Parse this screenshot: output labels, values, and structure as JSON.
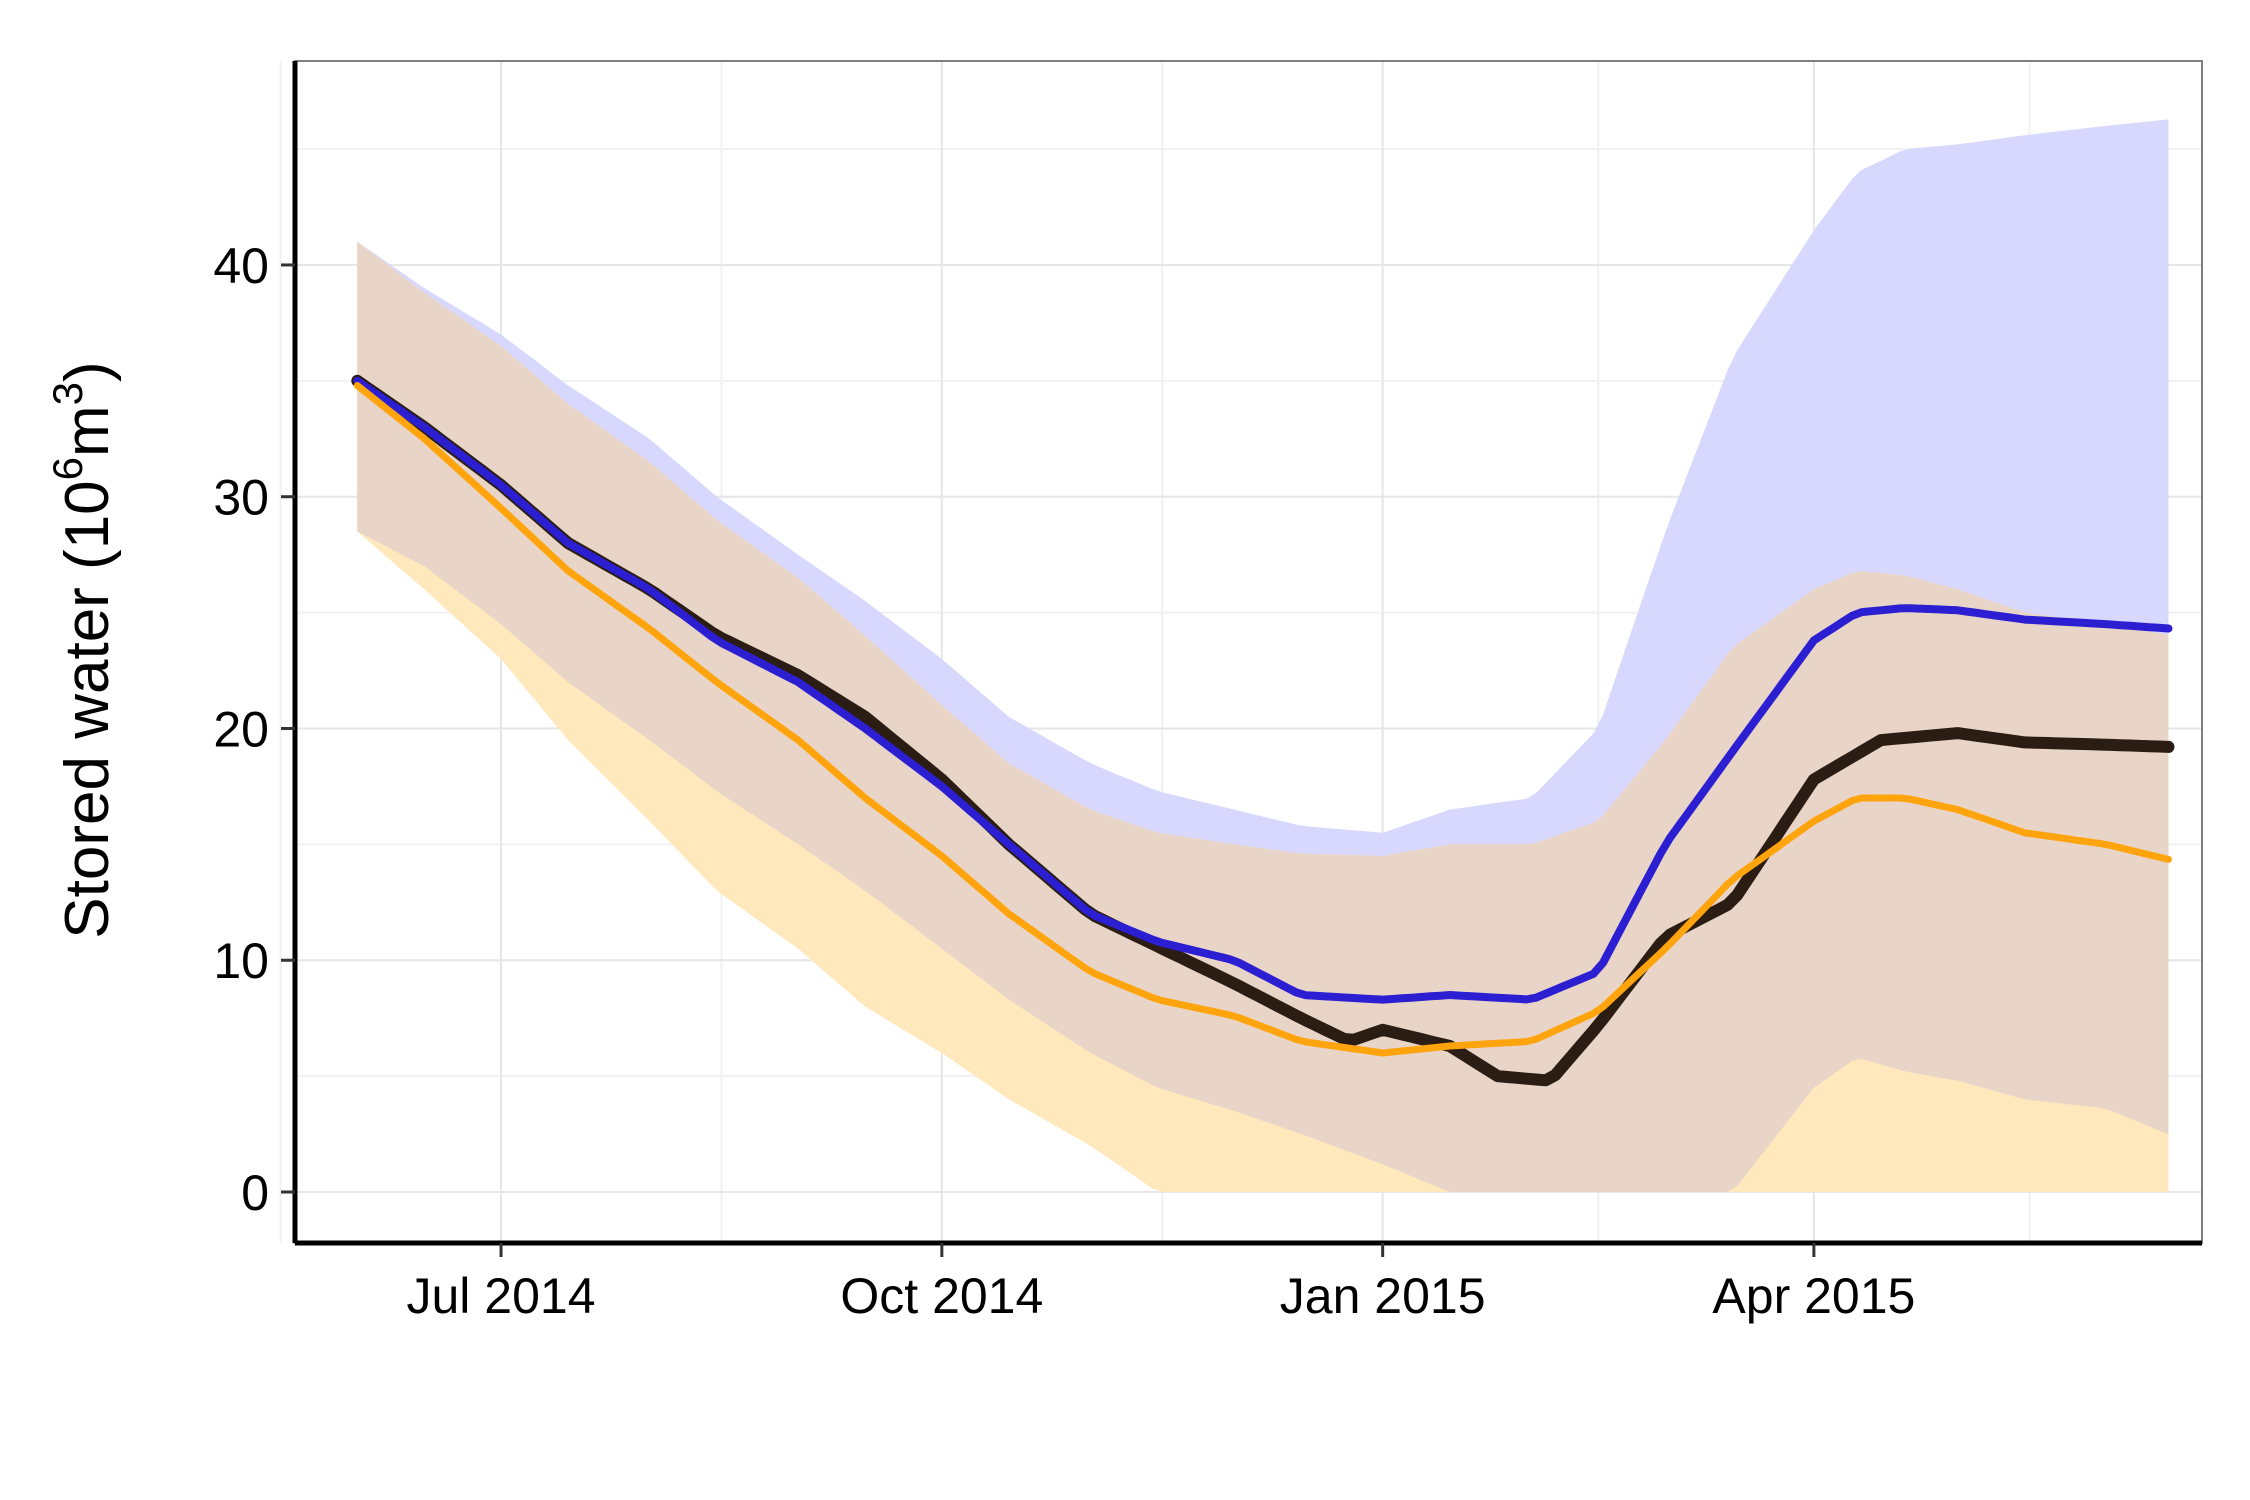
{
  "chart_data": {
    "type": "line",
    "title": "",
    "xlabel": "",
    "ylabel": {
      "main": "Stored water (10",
      "sup1": "6",
      "mid": "m",
      "sup2": "3",
      "end": ")"
    },
    "x_range": [
      "2014-05-19",
      "2015-06-21"
    ],
    "ylim": [
      -2.2,
      48.8
    ],
    "x_ticks": [
      {
        "date": "2014-07-01",
        "label": "Jul 2014"
      },
      {
        "date": "2014-10-01",
        "label": "Oct 2014"
      },
      {
        "date": "2015-01-01",
        "label": "Jan 2015"
      },
      {
        "date": "2015-04-01",
        "label": "Apr 2015"
      }
    ],
    "x_minor_ticks": [
      "2014-05-16",
      "2014-08-16",
      "2014-11-16",
      "2015-02-15",
      "2015-05-16"
    ],
    "y_ticks": [
      0,
      10,
      20,
      30,
      40
    ],
    "y_minor_ticks": [
      5,
      15,
      25,
      35,
      45
    ],
    "grid": true,
    "colors": {
      "black": "#2b1d13",
      "blue": "#2c1fd2",
      "orange": "#ffa40c",
      "band_blue": "#d8d8ff",
      "band_orange": "#ffe8bc",
      "band_overlap": "#e8d5c8"
    },
    "series": [
      {
        "key": "black",
        "color": "#2b1d13",
        "x": [
          "2014-06-01",
          "2014-06-15",
          "2014-07-01",
          "2014-07-15",
          "2014-08-01",
          "2014-08-15",
          "2014-09-01",
          "2014-09-15",
          "2014-10-01",
          "2014-10-15",
          "2014-11-01",
          "2014-11-15",
          "2014-12-01",
          "2014-12-15",
          "2014-12-25",
          "2015-01-01",
          "2015-01-15",
          "2015-01-25",
          "2015-02-05",
          "2015-02-15",
          "2015-03-01",
          "2015-03-15",
          "2015-04-01",
          "2015-04-15",
          "2015-05-01",
          "2015-05-15",
          "2015-06-01",
          "2015-06-15"
        ],
        "y": [
          35.0,
          33.0,
          30.5,
          28.0,
          26.0,
          24.0,
          22.3,
          20.5,
          17.8,
          15.0,
          12.0,
          10.6,
          9.0,
          7.5,
          6.5,
          7.0,
          6.3,
          5.0,
          4.8,
          7.2,
          11.0,
          12.5,
          17.8,
          19.5,
          19.8,
          19.4,
          19.3,
          19.2
        ]
      },
      {
        "key": "blue",
        "color": "#2c1fd2",
        "x": [
          "2014-06-01",
          "2014-06-15",
          "2014-07-01",
          "2014-07-15",
          "2014-08-01",
          "2014-08-15",
          "2014-09-01",
          "2014-09-15",
          "2014-10-01",
          "2014-10-15",
          "2014-11-01",
          "2014-11-15",
          "2014-12-01",
          "2014-12-15",
          "2015-01-01",
          "2015-01-15",
          "2015-02-01",
          "2015-02-15",
          "2015-03-01",
          "2015-03-15",
          "2015-04-01",
          "2015-04-10",
          "2015-04-20",
          "2015-05-01",
          "2015-05-15",
          "2015-06-01",
          "2015-06-15"
        ],
        "y": [
          35.0,
          33.0,
          30.5,
          28.0,
          26.0,
          23.8,
          22.0,
          20.0,
          17.5,
          15.0,
          12.0,
          10.8,
          10.0,
          8.5,
          8.3,
          8.5,
          8.3,
          9.5,
          15.0,
          19.0,
          23.8,
          25.0,
          25.2,
          25.1,
          24.7,
          24.5,
          24.3
        ]
      },
      {
        "key": "orange",
        "color": "#ffa40c",
        "x": [
          "2014-06-01",
          "2014-06-15",
          "2014-07-01",
          "2014-07-15",
          "2014-08-01",
          "2014-08-15",
          "2014-09-01",
          "2014-09-15",
          "2014-10-01",
          "2014-10-15",
          "2014-11-01",
          "2014-11-15",
          "2014-12-01",
          "2014-12-15",
          "2015-01-01",
          "2015-01-15",
          "2015-02-01",
          "2015-02-15",
          "2015-03-01",
          "2015-03-15",
          "2015-04-01",
          "2015-04-10",
          "2015-04-20",
          "2015-05-01",
          "2015-05-15",
          "2015-06-01",
          "2015-06-15"
        ],
        "y": [
          34.8,
          32.5,
          29.5,
          26.8,
          24.3,
          22.0,
          19.5,
          17.0,
          14.5,
          12.0,
          9.5,
          8.3,
          7.6,
          6.5,
          6.0,
          6.3,
          6.5,
          7.8,
          10.5,
          13.5,
          16.0,
          17.0,
          17.0,
          16.5,
          15.5,
          15.0,
          14.3
        ]
      }
    ],
    "bands": [
      {
        "key": "blue",
        "color": "#d8d8ff",
        "x": [
          "2014-06-01",
          "2014-06-15",
          "2014-07-01",
          "2014-07-15",
          "2014-08-01",
          "2014-08-15",
          "2014-09-01",
          "2014-09-15",
          "2014-10-01",
          "2014-10-15",
          "2014-11-01",
          "2014-11-15",
          "2014-12-01",
          "2014-12-15",
          "2015-01-01",
          "2015-01-15",
          "2015-02-01",
          "2015-02-15",
          "2015-03-01",
          "2015-03-15",
          "2015-04-01",
          "2015-04-10",
          "2015-04-20",
          "2015-05-01",
          "2015-05-15",
          "2015-06-01",
          "2015-06-15"
        ],
        "upper": [
          41.0,
          39.0,
          37.0,
          34.8,
          32.5,
          30.0,
          27.5,
          25.5,
          23.0,
          20.5,
          18.5,
          17.3,
          16.5,
          15.8,
          15.5,
          16.5,
          17.0,
          20.0,
          28.5,
          36.0,
          41.5,
          44.0,
          45.0,
          45.2,
          45.6,
          46.0,
          46.3
        ],
        "lower": [
          28.5,
          27.0,
          24.5,
          22.0,
          19.5,
          17.3,
          15.0,
          13.0,
          10.5,
          8.3,
          6.0,
          4.5,
          3.5,
          2.5,
          1.2,
          0.0,
          0.0,
          0.0,
          0.0,
          0.0,
          4.5,
          5.8,
          5.2,
          4.8,
          4.0,
          3.6,
          2.4
        ]
      },
      {
        "key": "orange",
        "color": "#ffe8bc",
        "x": [
          "2014-06-01",
          "2014-06-15",
          "2014-07-01",
          "2014-07-15",
          "2014-08-01",
          "2014-08-15",
          "2014-09-01",
          "2014-09-15",
          "2014-10-01",
          "2014-10-15",
          "2014-11-01",
          "2014-11-15",
          "2014-12-01",
          "2014-12-15",
          "2015-01-01",
          "2015-01-15",
          "2015-02-01",
          "2015-02-15",
          "2015-03-01",
          "2015-03-15",
          "2015-04-01",
          "2015-04-10",
          "2015-04-20",
          "2015-05-01",
          "2015-05-15",
          "2015-06-01",
          "2015-06-15"
        ],
        "upper": [
          41.0,
          38.8,
          36.5,
          34.0,
          31.5,
          29.0,
          26.5,
          24.0,
          21.0,
          18.5,
          16.5,
          15.5,
          15.0,
          14.6,
          14.5,
          15.0,
          15.0,
          16.0,
          19.5,
          23.5,
          26.0,
          26.8,
          26.6,
          26.0,
          25.0,
          24.5,
          24.0
        ],
        "lower": [
          28.5,
          26.0,
          23.0,
          19.5,
          16.0,
          13.0,
          10.5,
          8.0,
          6.0,
          4.0,
          2.0,
          0.0,
          0.0,
          0.0,
          0.0,
          0.0,
          0.0,
          0.0,
          0.0,
          0.0,
          0.0,
          0.0,
          0.0,
          0.0,
          0.0,
          0.0,
          0.0
        ]
      },
      {
        "key": "overlap",
        "color": "#e8d5c8",
        "x": [
          "2014-06-01",
          "2014-06-15",
          "2014-07-01",
          "2014-07-15",
          "2014-08-01",
          "2014-08-15",
          "2014-09-01",
          "2014-09-15",
          "2014-10-01",
          "2014-10-15",
          "2014-11-01",
          "2014-11-15",
          "2014-12-01",
          "2014-12-15",
          "2015-01-01",
          "2015-01-15",
          "2015-02-01",
          "2015-02-15",
          "2015-03-01",
          "2015-03-15",
          "2015-04-01",
          "2015-04-10",
          "2015-04-20",
          "2015-05-01",
          "2015-05-15",
          "2015-06-01",
          "2015-06-15"
        ],
        "upper": [
          41.0,
          38.8,
          36.5,
          34.0,
          31.5,
          29.0,
          26.5,
          24.0,
          21.0,
          18.5,
          16.5,
          15.5,
          15.0,
          14.6,
          14.5,
          15.0,
          15.0,
          16.0,
          19.5,
          23.5,
          26.0,
          26.8,
          26.6,
          26.0,
          25.0,
          24.5,
          24.0
        ],
        "lower": [
          28.5,
          27.0,
          24.5,
          22.0,
          19.5,
          17.3,
          15.0,
          13.0,
          10.5,
          8.3,
          6.0,
          4.5,
          3.5,
          2.5,
          1.2,
          0.0,
          0.0,
          0.0,
          0.0,
          0.0,
          4.5,
          5.8,
          5.2,
          4.8,
          4.0,
          3.6,
          2.4
        ]
      }
    ]
  }
}
